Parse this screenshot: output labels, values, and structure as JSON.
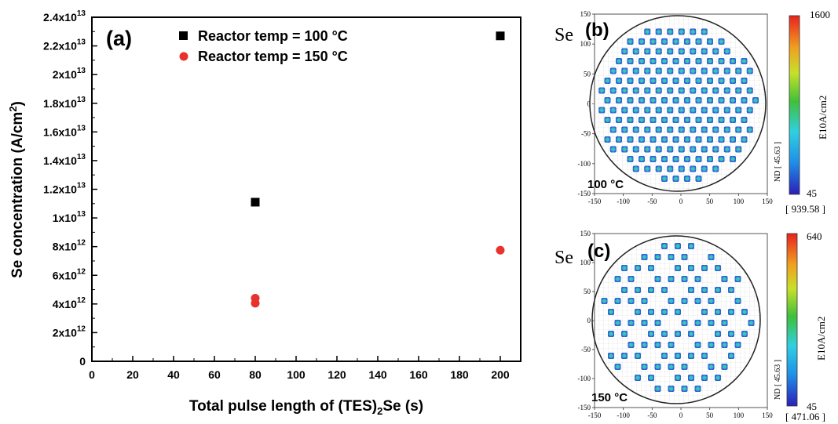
{
  "chart_data": [
    {
      "type": "scatter",
      "panel_label": "(a)",
      "xlabel_pre": "Total pulse length of (TES)",
      "xlabel_sub": "2",
      "xlabel_post": "Se (s)",
      "ylabel_pre": "Se concentration (A/cm",
      "ylabel_sup": "2",
      "ylabel_post": ")",
      "xlim": [
        0,
        210
      ],
      "ylim": [
        0,
        24000000000000.0
      ],
      "x_ticks": [
        "0",
        "20",
        "40",
        "60",
        "80",
        "100",
        "120",
        "140",
        "160",
        "180",
        "200"
      ],
      "y_ticks": [
        {
          "value": 0,
          "mant": "0",
          "exp": ""
        },
        {
          "value": 2000000000000.0,
          "mant": "2x10",
          "exp": "12"
        },
        {
          "value": 4000000000000.0,
          "mant": "4x10",
          "exp": "12"
        },
        {
          "value": 6000000000000.0,
          "mant": "6x10",
          "exp": "12"
        },
        {
          "value": 8000000000000.0,
          "mant": "8x10",
          "exp": "12"
        },
        {
          "value": 10000000000000.0,
          "mant": "1x10",
          "exp": "13"
        },
        {
          "value": 12000000000000.0,
          "mant": "1.2x10",
          "exp": "13"
        },
        {
          "value": 14000000000000.0,
          "mant": "1.4x10",
          "exp": "13"
        },
        {
          "value": 16000000000000.0,
          "mant": "1.6x10",
          "exp": "13"
        },
        {
          "value": 18000000000000.0,
          "mant": "1.8x10",
          "exp": "13"
        },
        {
          "value": 20000000000000.0,
          "mant": "2x10",
          "exp": "13"
        },
        {
          "value": 22000000000000.0,
          "mant": "2.2x10",
          "exp": "13"
        },
        {
          "value": 24000000000000.0,
          "mant": "2.4x10",
          "exp": "13"
        }
      ],
      "legend_position": "top-center",
      "series": [
        {
          "name": "Reactor temp = 100 °C",
          "marker": "square",
          "color": "#000000",
          "points": [
            {
              "x": 80,
              "y": 11100000000000.0
            },
            {
              "x": 200,
              "y": 22700000000000.0
            }
          ]
        },
        {
          "name": "Reactor temp = 150 °C",
          "marker": "circle",
          "color": "#e8322d",
          "points": [
            {
              "x": 80,
              "y": 4400000000000.0
            },
            {
              "x": 80,
              "y": 4050000000000.0
            },
            {
              "x": 200,
              "y": 7750000000000.0
            }
          ]
        }
      ]
    },
    {
      "type": "heatmap",
      "panel_label": "(b)",
      "prefix": "Se",
      "temp_label": "100 °C",
      "colorbar_max": "1600",
      "colorbar_min": "45",
      "colorbar_unit": "E10A/cm2",
      "nd_label": "ND [ 45.63 ]",
      "bracket_value": "[  939.58  ]",
      "x_ticks": [
        "-150",
        "-100",
        "-50",
        "0",
        "50",
        "100",
        "150"
      ],
      "y_ticks": [
        "150",
        "100",
        "50",
        "0",
        "-50",
        "-100",
        "-150"
      ],
      "range": [
        -150,
        150
      ]
    },
    {
      "type": "heatmap",
      "panel_label": "(c)",
      "prefix": "Se",
      "temp_label": "150 °C",
      "colorbar_max": "640",
      "colorbar_min": "45",
      "colorbar_unit": "E10A/cm2",
      "nd_label": "ND [ 45.63 ]",
      "bracket_value": "[  471.06  ]",
      "x_ticks": [
        "-150",
        "-100",
        "-50",
        "0",
        "50",
        "100",
        "150"
      ],
      "y_ticks": [
        "150",
        "100",
        "50",
        "0",
        "-50",
        "-100",
        "-150"
      ],
      "range": [
        -150,
        150
      ]
    }
  ]
}
